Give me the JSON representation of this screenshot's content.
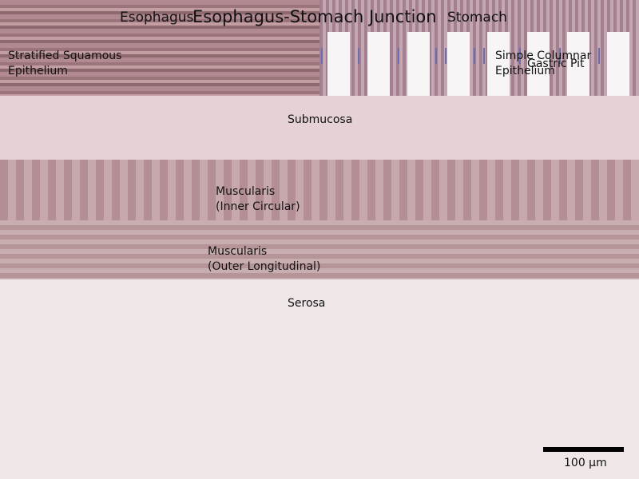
{
  "regions": {
    "esophagus": "Esophagus",
    "junction": "Esophagus-Stomach Junction",
    "stomach": "Stomach"
  },
  "epithelium": {
    "esophagus_line1": "Stratified Squamous",
    "esophagus_line2": "Epithelium",
    "stomach_line1": "Simple Columnar",
    "stomach_line2": "Epithelium",
    "gastric_pit": "Gastric Pit"
  },
  "layers": {
    "submucosa": "Submucosa",
    "muscularis_inner_line1": "Muscularis",
    "muscularis_inner_line2": "(Inner Circular)",
    "muscularis_outer_line1": "Muscularis",
    "muscularis_outer_line2": "(Outer Longitudinal)",
    "serosa": "Serosa"
  },
  "scale": {
    "label": "100 µm"
  },
  "colors": {
    "squamous": "#b08a90",
    "columnar": "#a47f8e",
    "submucosa": "#e6d2d4",
    "muscularis": "#b38e95",
    "serosa": "#efe7e8",
    "nucleus": "#6b6fb0"
  }
}
